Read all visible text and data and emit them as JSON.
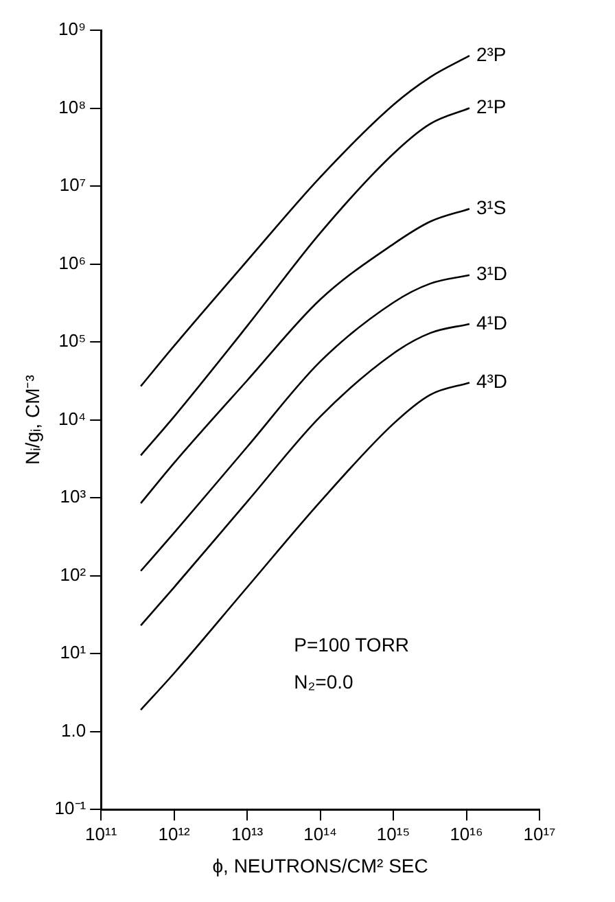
{
  "chart_data": {
    "type": "line",
    "xlabel": "ϕ, NEUTRONS/CM² SEC",
    "ylabel": "Nᵢ/gᵢ, CM⁻³",
    "log": "xy",
    "marker": "none",
    "line_style": "solid",
    "x": [
      350000000000.0,
      1000000000000.0,
      10000000000000.0,
      100000000000000.0,
      1000000000000000.0,
      3200000000000000.0,
      1.1e+16
    ],
    "series": [
      {
        "name": "2³P",
        "color": "#000000",
        "values": [
          27000.0,
          89000.0,
          1100000.0,
          13000000.0,
          110000000.0,
          250000000.0,
          470000000.0
        ]
      },
      {
        "name": "2¹P",
        "color": "#000000",
        "values": [
          3500.0,
          11000.0,
          160000.0,
          2500000.0,
          26000000.0,
          63000000.0,
          100000000.0
        ]
      },
      {
        "name": "3¹S",
        "color": "#000000",
        "values": [
          850,
          2800.0,
          32000.0,
          350000.0,
          1800000.0,
          3500000.0,
          5100000.0
        ]
      },
      {
        "name": "3¹D",
        "color": "#000000",
        "values": [
          115,
          355,
          4500.0,
          56000.0,
          320000.0,
          560000.0,
          720000.0
        ]
      },
      {
        "name": "4¹D",
        "color": "#000000",
        "values": [
          23,
          71,
          890,
          11000.0,
          71000.0,
          130000.0,
          170000.0
        ]
      },
      {
        "name": "4³D",
        "color": "#000000",
        "values": [
          1.9,
          5.6,
          71,
          890,
          8900.0,
          21000.0,
          30000.0
        ]
      }
    ],
    "xlim": [
      100000000000.0,
      1e+17
    ],
    "xticks": [
      {
        "value": 100000000000.0,
        "label": "10¹¹"
      },
      {
        "value": 1000000000000.0,
        "label": "10¹²"
      },
      {
        "value": 10000000000000.0,
        "label": "10¹³"
      },
      {
        "value": 100000000000000.0,
        "label": "10¹⁴"
      },
      {
        "value": 1000000000000000.0,
        "label": "10¹⁵"
      },
      {
        "value": 1e+16,
        "label": "10¹⁶"
      },
      {
        "value": 1e+17,
        "label": "10¹⁷"
      }
    ],
    "ylim": [
      0.1,
      1000000000.0
    ],
    "yticks": [
      {
        "value": 0.1,
        "label": "10⁻¹"
      },
      {
        "value": 1,
        "label": "1.0"
      },
      {
        "value": 10,
        "label": "10¹"
      },
      {
        "value": 100,
        "label": "10²"
      },
      {
        "value": 1000,
        "label": "10³"
      },
      {
        "value": 10000.0,
        "label": "10⁴"
      },
      {
        "value": 100000.0,
        "label": "10⁵"
      },
      {
        "value": 1000000.0,
        "label": "10⁶"
      },
      {
        "value": 10000000.0,
        "label": "10⁷"
      },
      {
        "value": 100000000.0,
        "label": "10⁸"
      },
      {
        "value": 1000000000.0,
        "label": "10⁹"
      }
    ],
    "annotations": [
      "P=100 TORR",
      "N₂=0.0"
    ]
  }
}
